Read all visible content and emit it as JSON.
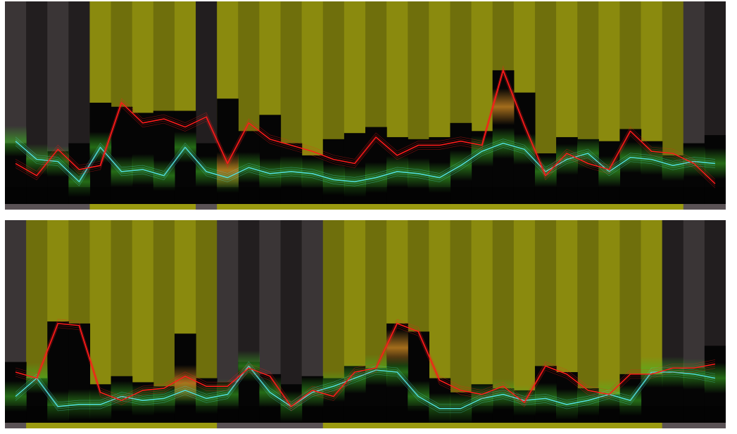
{
  "colors": {
    "gray_light": "#3a3536",
    "gray_dark": "#221e1f",
    "yellow_light": "#8a8a0e",
    "yellow_dark": "#6f6f0c",
    "strip_yellow": "#9a9a10",
    "strip_gray": "#5a5255",
    "bar": "#050505",
    "red": "#ff1a1a",
    "cyan": "#4fd8d8",
    "green": "#3fbf25",
    "amber": "#c08020"
  },
  "chart_data": [
    {
      "type": "bar",
      "xlabel": "",
      "ylabel": "",
      "ylim": [
        0,
        100
      ],
      "grid": false,
      "legend": "none",
      "background_shading": [
        "gray",
        "gray",
        "gray",
        "gray",
        "yellow",
        "yellow",
        "yellow",
        "yellow",
        "yellow",
        "gray",
        "yellow",
        "yellow",
        "yellow",
        "yellow",
        "yellow",
        "yellow",
        "yellow",
        "yellow",
        "yellow",
        "yellow",
        "yellow",
        "yellow",
        "yellow",
        "yellow",
        "yellow",
        "yellow",
        "yellow",
        "yellow",
        "yellow",
        "yellow",
        "yellow",
        "yellow",
        "gray",
        "gray"
      ],
      "bar_values": [
        30,
        22,
        26,
        30,
        50,
        48,
        45,
        46,
        46,
        30,
        52,
        36,
        44,
        30,
        24,
        32,
        35,
        38,
        33,
        32,
        33,
        40,
        36,
        66,
        55,
        25,
        33,
        32,
        31,
        37,
        31,
        24,
        30,
        34
      ],
      "red_line": [
        20,
        14,
        27,
        17,
        19,
        50,
        40,
        42,
        38,
        43,
        20,
        40,
        32,
        29,
        26,
        22,
        20,
        33,
        24,
        29,
        29,
        31,
        29,
        66,
        39,
        14,
        25,
        20,
        17,
        36,
        26,
        25,
        20,
        10
      ],
      "cyan_line": [
        31,
        22,
        21,
        11,
        28,
        16,
        17,
        14,
        28,
        16,
        13,
        18,
        15,
        16,
        15,
        12,
        11,
        13,
        16,
        15,
        13,
        19,
        26,
        30,
        27,
        16,
        22,
        25,
        16,
        23,
        22,
        19,
        21,
        20
      ],
      "highlight": {
        "index": 10,
        "color": "amber"
      },
      "highlight_2": {
        "index": 23,
        "color": "amber"
      }
    },
    {
      "type": "bar",
      "xlabel": "",
      "ylabel": "",
      "ylim": [
        0,
        100
      ],
      "grid": false,
      "legend": "none",
      "background_shading": [
        "gray",
        "yellow",
        "yellow",
        "yellow",
        "yellow",
        "yellow",
        "yellow",
        "yellow",
        "yellow",
        "yellow",
        "gray",
        "gray",
        "gray",
        "gray",
        "gray",
        "yellow",
        "yellow",
        "yellow",
        "yellow",
        "yellow",
        "yellow",
        "yellow",
        "yellow",
        "yellow",
        "yellow",
        "yellow",
        "yellow",
        "yellow",
        "yellow",
        "yellow",
        "yellow",
        "gray",
        "gray",
        "gray"
      ],
      "bar_values": [
        30,
        22,
        50,
        49,
        19,
        23,
        20,
        18,
        44,
        22,
        20,
        30,
        24,
        19,
        23,
        22,
        28,
        27,
        49,
        45,
        22,
        15,
        19,
        17,
        16,
        28,
        25,
        17,
        14,
        24,
        24,
        27,
        27,
        38
      ],
      "red_line": [
        25,
        22,
        49,
        48,
        15,
        11,
        16,
        17,
        23,
        18,
        18,
        27,
        23,
        8,
        16,
        13,
        25,
        27,
        49,
        45,
        21,
        16,
        14,
        18,
        10,
        28,
        24,
        16,
        14,
        24,
        24,
        27,
        27,
        29
      ],
      "cyan_line": [
        13,
        22,
        8,
        9,
        9,
        13,
        11,
        12,
        16,
        12,
        14,
        28,
        15,
        8,
        15,
        18,
        22,
        26,
        25,
        13,
        7,
        7,
        12,
        14,
        11,
        12,
        9,
        11,
        14,
        11,
        25,
        25,
        24,
        22
      ],
      "highlight": {
        "index": 8,
        "color": "amber"
      },
      "highlight_2": {
        "index": 18,
        "color": "amber"
      }
    }
  ]
}
